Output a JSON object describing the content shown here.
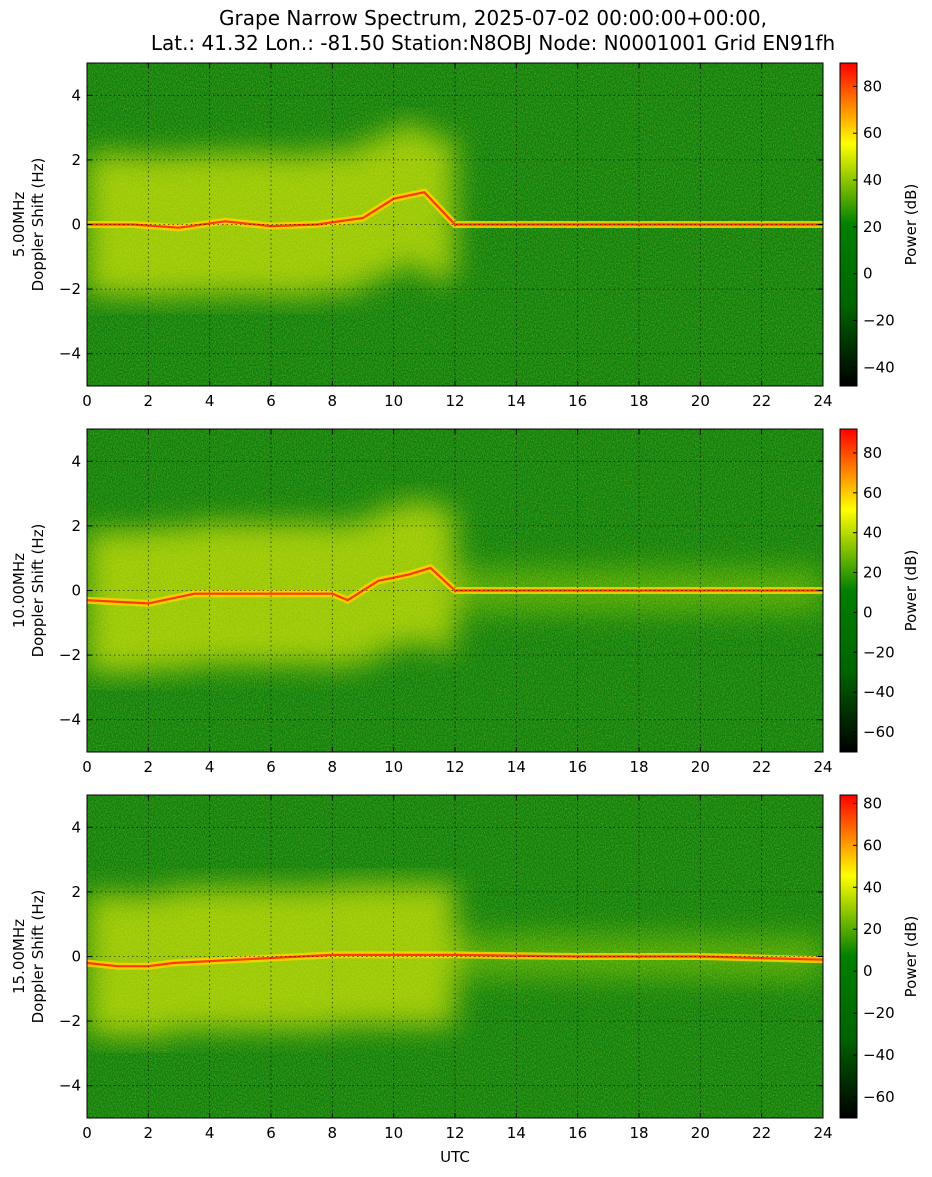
{
  "title_line1": "Grape Narrow Spectrum, 2025-07-02 00:00:00+00:00,",
  "title_line2": "Lat.: 41.32 Lon.: -81.50 Station:N8OBJ Node: N0001001 Grid EN91fh",
  "colors": {
    "cmap": [
      "#000000",
      "#006400",
      "#008000",
      "#ffff00",
      "#ff0000"
    ],
    "grid": "#000000",
    "background": "#ffffff"
  },
  "chart_data": [
    {
      "type": "heatmap",
      "ylabel_line1": "5.00MHz",
      "ylabel_line2": "Doppler Shift (Hz)",
      "xlabel": "",
      "xlim": [
        0,
        24
      ],
      "ylim": [
        -5,
        5
      ],
      "x_ticks": [
        0,
        2,
        4,
        6,
        8,
        10,
        12,
        14,
        16,
        18,
        20,
        22,
        24
      ],
      "y_ticks": [
        -4,
        -2,
        0,
        2,
        4
      ],
      "grid": true,
      "colorbar": {
        "label": "Power (dB)",
        "ticks": [
          -40,
          -20,
          0,
          20,
          40,
          60,
          80
        ],
        "range": [
          -48,
          90
        ]
      },
      "carrier_trace": [
        {
          "utc": 0.0,
          "hz": 0.0
        },
        {
          "utc": 1.5,
          "hz": 0.0
        },
        {
          "utc": 3.0,
          "hz": -0.1
        },
        {
          "utc": 4.5,
          "hz": 0.1
        },
        {
          "utc": 6.0,
          "hz": -0.05
        },
        {
          "utc": 7.5,
          "hz": 0.0
        },
        {
          "utc": 9.0,
          "hz": 0.2
        },
        {
          "utc": 10.0,
          "hz": 0.8
        },
        {
          "utc": 11.0,
          "hz": 1.0
        },
        {
          "utc": 12.0,
          "hz": 0.0
        },
        {
          "utc": 24.0,
          "hz": 0.0
        }
      ]
    },
    {
      "type": "heatmap",
      "ylabel_line1": "10.00MHz",
      "ylabel_line2": "Doppler Shift (Hz)",
      "xlabel": "",
      "xlim": [
        0,
        24
      ],
      "ylim": [
        -5,
        5
      ],
      "x_ticks": [
        0,
        2,
        4,
        6,
        8,
        10,
        12,
        14,
        16,
        18,
        20,
        22,
        24
      ],
      "y_ticks": [
        -4,
        -2,
        0,
        2,
        4
      ],
      "grid": true,
      "colorbar": {
        "label": "Power (dB)",
        "ticks": [
          -60,
          -40,
          -20,
          0,
          20,
          40,
          60,
          80
        ],
        "range": [
          -70,
          92
        ]
      },
      "carrier_trace": [
        {
          "utc": 0.0,
          "hz": -0.3
        },
        {
          "utc": 2.0,
          "hz": -0.4
        },
        {
          "utc": 3.5,
          "hz": -0.1
        },
        {
          "utc": 5.0,
          "hz": -0.1
        },
        {
          "utc": 6.5,
          "hz": -0.1
        },
        {
          "utc": 8.0,
          "hz": -0.1
        },
        {
          "utc": 8.5,
          "hz": -0.3
        },
        {
          "utc": 9.5,
          "hz": 0.3
        },
        {
          "utc": 10.5,
          "hz": 0.5
        },
        {
          "utc": 11.2,
          "hz": 0.7
        },
        {
          "utc": 12.0,
          "hz": 0.0
        },
        {
          "utc": 24.0,
          "hz": 0.0
        }
      ]
    },
    {
      "type": "heatmap",
      "ylabel_line1": "15.00MHz",
      "ylabel_line2": "Doppler Shift (Hz)",
      "xlabel": "UTC",
      "xlim": [
        0,
        24
      ],
      "ylim": [
        -5,
        5
      ],
      "x_ticks": [
        0,
        2,
        4,
        6,
        8,
        10,
        12,
        14,
        16,
        18,
        20,
        22,
        24
      ],
      "y_ticks": [
        -4,
        -2,
        0,
        2,
        4
      ],
      "grid": true,
      "colorbar": {
        "label": "Power (dB)",
        "ticks": [
          -60,
          -40,
          -20,
          0,
          20,
          40,
          60,
          80
        ],
        "range": [
          -70,
          84
        ]
      },
      "carrier_trace": [
        {
          "utc": 0.0,
          "hz": -0.2
        },
        {
          "utc": 1.0,
          "hz": -0.3
        },
        {
          "utc": 2.0,
          "hz": -0.3
        },
        {
          "utc": 2.8,
          "hz": -0.2
        },
        {
          "utc": 8.0,
          "hz": 0.05
        },
        {
          "utc": 12.0,
          "hz": 0.05
        },
        {
          "utc": 16.0,
          "hz": 0.0
        },
        {
          "utc": 20.0,
          "hz": 0.0
        },
        {
          "utc": 24.0,
          "hz": -0.1
        }
      ]
    }
  ]
}
